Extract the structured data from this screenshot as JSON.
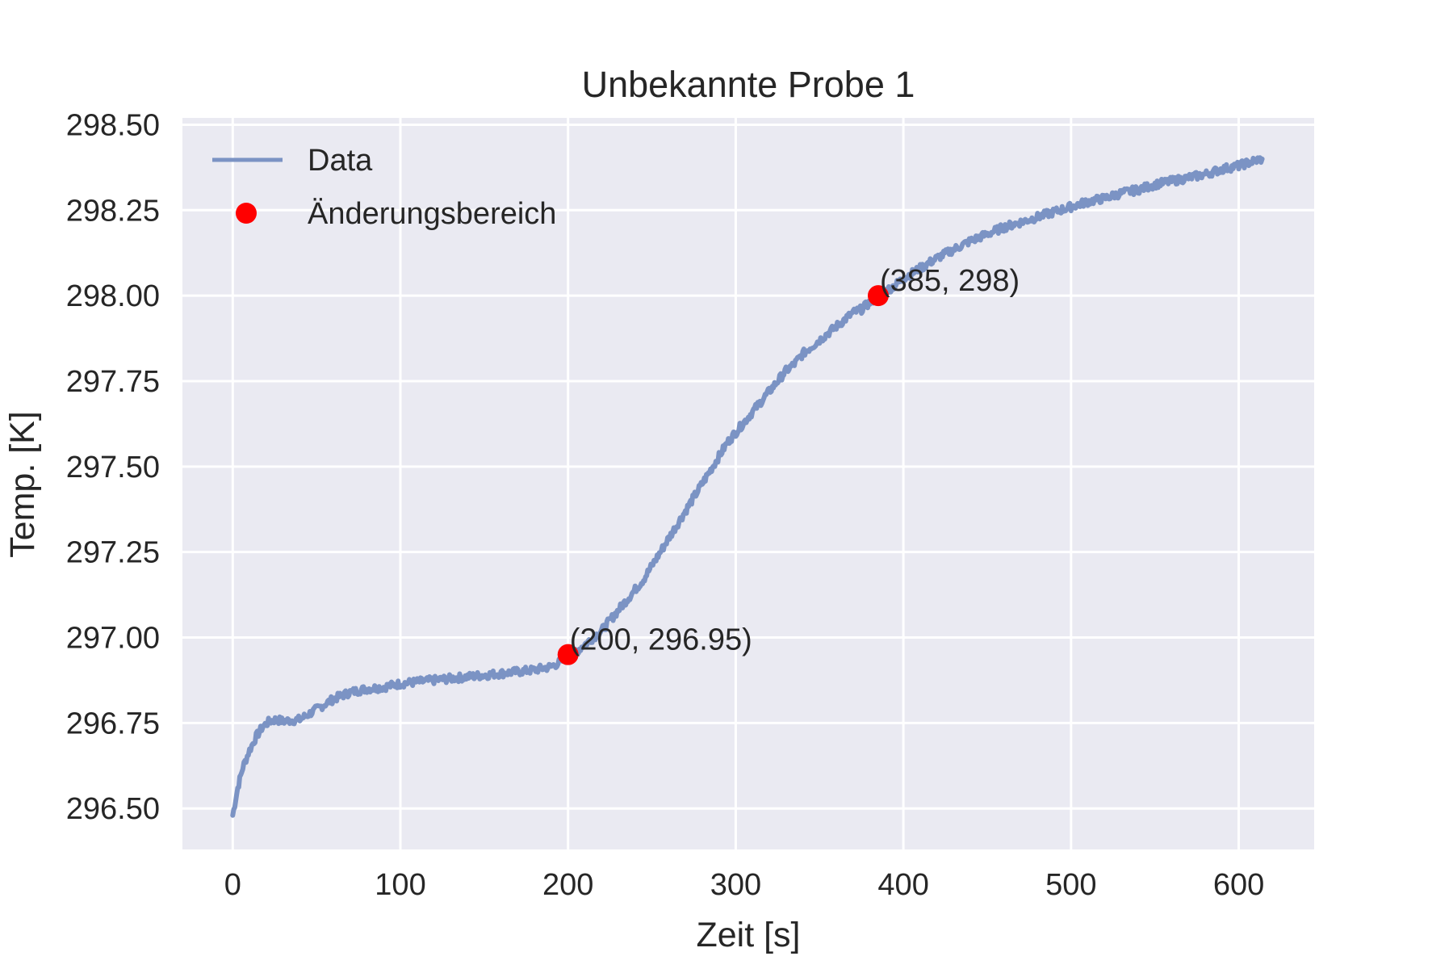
{
  "chart_data": {
    "type": "line",
    "title": "Unbekannte Probe 1",
    "xlabel": "Zeit [s]",
    "ylabel": "Temp. [K]",
    "xlim": [
      -30,
      645
    ],
    "ylim": [
      296.38,
      298.52
    ],
    "x_ticks": [
      0,
      100,
      200,
      300,
      400,
      500,
      600
    ],
    "x_tick_labels": [
      "0",
      "100",
      "200",
      "300",
      "400",
      "500",
      "600"
    ],
    "y_ticks": [
      296.5,
      296.75,
      297.0,
      297.25,
      297.5,
      297.75,
      298.0,
      298.25,
      298.5
    ],
    "y_tick_labels": [
      "296.50",
      "296.75",
      "297.00",
      "297.25",
      "297.50",
      "297.75",
      "298.00",
      "298.25",
      "298.50"
    ],
    "grid": true,
    "legend_position": "top-left",
    "colors": {
      "background": "#eaeaf2",
      "grid": "#ffffff",
      "line": "#7b93c4",
      "marker": "#ff0000"
    },
    "series": [
      {
        "name": "Data",
        "kind": "line",
        "noise_amplitude": 0.012,
        "x": [
          0,
          3,
          6,
          10,
          14,
          18,
          22,
          26,
          30,
          40,
          50,
          60,
          70,
          80,
          90,
          100,
          110,
          120,
          130,
          140,
          150,
          160,
          170,
          180,
          190,
          200,
          205,
          210,
          215,
          220,
          225,
          230,
          235,
          240,
          245,
          250,
          255,
          260,
          265,
          270,
          275,
          280,
          285,
          290,
          295,
          300,
          305,
          310,
          315,
          320,
          325,
          330,
          335,
          340,
          345,
          350,
          355,
          360,
          365,
          370,
          375,
          380,
          385,
          390,
          395,
          400,
          410,
          420,
          430,
          440,
          450,
          460,
          470,
          480,
          490,
          500,
          510,
          520,
          530,
          540,
          550,
          560,
          570,
          580,
          590,
          600,
          610,
          614
        ],
        "y": [
          296.48,
          296.56,
          296.62,
          296.67,
          296.71,
          296.74,
          296.755,
          296.76,
          296.755,
          296.76,
          296.79,
          296.82,
          296.84,
          296.85,
          296.855,
          296.865,
          296.87,
          296.875,
          296.88,
          296.885,
          296.89,
          296.895,
          296.9,
          296.905,
          296.915,
          296.94,
          296.96,
          296.98,
          297.0,
          297.02,
          297.05,
          297.08,
          297.11,
          297.14,
          297.17,
          297.21,
          297.25,
          297.29,
          297.33,
          297.37,
          297.41,
          297.45,
          297.49,
          297.53,
          297.57,
          297.6,
          297.63,
          297.66,
          297.69,
          297.72,
          297.75,
          297.78,
          297.8,
          297.83,
          297.85,
          297.87,
          297.89,
          297.91,
          297.93,
          297.95,
          297.96,
          297.98,
          298.0,
          298.015,
          298.03,
          298.05,
          298.08,
          298.11,
          298.135,
          298.16,
          298.18,
          298.2,
          298.215,
          298.23,
          298.245,
          298.26,
          298.275,
          298.285,
          298.3,
          298.31,
          298.325,
          298.335,
          298.345,
          298.355,
          298.37,
          298.38,
          298.395,
          298.4
        ]
      },
      {
        "name": "Änderungsbereich",
        "kind": "scatter",
        "x": [
          200,
          385
        ],
        "y": [
          296.95,
          298.0
        ]
      }
    ],
    "annotations": [
      {
        "text": "(200, 296.95)",
        "x": 200,
        "y": 296.95
      },
      {
        "text": "(385, 298)",
        "x": 385,
        "y": 298.0
      }
    ]
  }
}
